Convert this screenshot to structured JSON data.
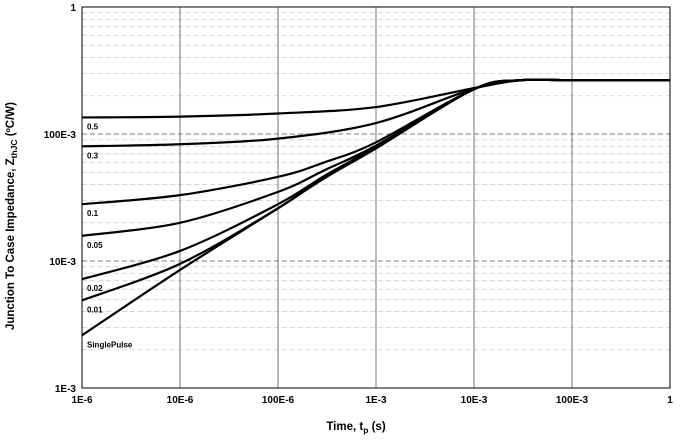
{
  "chart_data": {
    "type": "line",
    "title": "",
    "x_scale": "log",
    "y_scale": "log",
    "xlim": [
      1e-06,
      1
    ],
    "ylim": [
      0.001,
      1
    ],
    "grid": {
      "major": true,
      "minor_y": true
    },
    "xlabel": {
      "main": "Time, t",
      "sub": "p",
      "unit": " (s)"
    },
    "ylabel": {
      "main": "Junction To Case Impedance, Z",
      "sub": "thJC",
      "unit": " (ºC/W)"
    },
    "x_ticks": [
      {
        "value": 1e-06,
        "label": "1E-6"
      },
      {
        "value": 1e-05,
        "label": "10E-6"
      },
      {
        "value": 0.0001,
        "label": "100E-6"
      },
      {
        "value": 0.001,
        "label": "1E-3"
      },
      {
        "value": 0.01,
        "label": "10E-3"
      },
      {
        "value": 0.1,
        "label": "100E-3"
      },
      {
        "value": 1,
        "label": "1"
      }
    ],
    "y_ticks": [
      {
        "value": 0.001,
        "label": "1E-3"
      },
      {
        "value": 0.01,
        "label": "10E-3"
      },
      {
        "value": 0.1,
        "label": "100E-3"
      },
      {
        "value": 1,
        "label": "1"
      }
    ],
    "series": [
      {
        "name": "0.5",
        "x": [
          1e-06,
          1e-05,
          0.0001,
          0.001,
          0.01,
          0.03,
          0.1,
          1
        ],
        "y": [
          0.135,
          0.137,
          0.145,
          0.163,
          0.23,
          0.265,
          0.265,
          0.265
        ]
      },
      {
        "name": "0.3",
        "x": [
          1e-06,
          1e-05,
          0.0001,
          0.001,
          0.01,
          0.03,
          0.1,
          1
        ],
        "y": [
          0.08,
          0.083,
          0.092,
          0.122,
          0.228,
          0.265,
          0.265,
          0.265
        ]
      },
      {
        "name": "0.1",
        "x": [
          1e-06,
          1e-05,
          0.0001,
          0.0003,
          0.001,
          0.01,
          0.03,
          0.1,
          1
        ],
        "y": [
          0.028,
          0.033,
          0.046,
          0.06,
          0.086,
          0.226,
          0.265,
          0.265,
          0.265
        ]
      },
      {
        "name": "0.05",
        "x": [
          1e-06,
          1e-05,
          0.0001,
          0.0003,
          0.001,
          0.01,
          0.03,
          0.1,
          1
        ],
        "y": [
          0.0158,
          0.02,
          0.035,
          0.052,
          0.081,
          0.226,
          0.265,
          0.265,
          0.265
        ]
      },
      {
        "name": "0.02",
        "x": [
          1e-06,
          1e-05,
          0.0001,
          0.0003,
          0.001,
          0.01,
          0.03,
          0.1,
          1
        ],
        "y": [
          0.0072,
          0.012,
          0.028,
          0.047,
          0.079,
          0.225,
          0.265,
          0.265,
          0.265
        ]
      },
      {
        "name": "0.01",
        "x": [
          1e-06,
          1e-05,
          0.0001,
          0.0003,
          0.001,
          0.01,
          0.03,
          0.1,
          1
        ],
        "y": [
          0.0049,
          0.0095,
          0.026,
          0.046,
          0.078,
          0.225,
          0.265,
          0.265,
          0.265
        ]
      },
      {
        "name": "SinglePulse",
        "x": [
          1e-06,
          1e-05,
          0.0001,
          0.0003,
          0.001,
          0.01,
          0.03,
          0.1,
          1
        ],
        "y": [
          0.0026,
          0.0085,
          0.026,
          0.045,
          0.077,
          0.225,
          0.265,
          0.265,
          0.265
        ]
      }
    ]
  }
}
